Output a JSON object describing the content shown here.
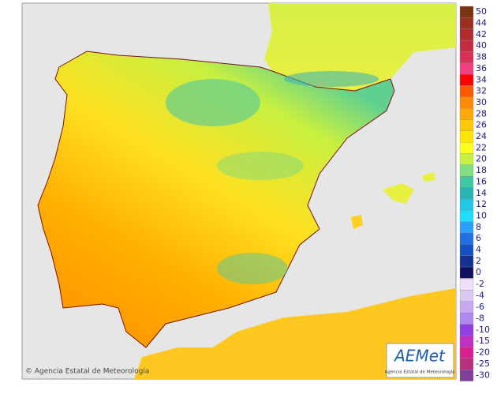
{
  "legend": {
    "entries": [
      {
        "value": 50,
        "color": "#7a3412"
      },
      {
        "value": 44,
        "color": "#9c2f22"
      },
      {
        "value": 42,
        "color": "#b02c30"
      },
      {
        "value": 40,
        "color": "#c42c42"
      },
      {
        "value": 38,
        "color": "#d83058"
      },
      {
        "value": 36,
        "color": "#f04080"
      },
      {
        "value": 34,
        "color": "#ff0000"
      },
      {
        "value": 32,
        "color": "#ff5a00"
      },
      {
        "value": 30,
        "color": "#ff8c00"
      },
      {
        "value": 28,
        "color": "#ffaa00"
      },
      {
        "value": 26,
        "color": "#ffc800"
      },
      {
        "value": 24,
        "color": "#ffe600"
      },
      {
        "value": 22,
        "color": "#ffff20"
      },
      {
        "value": 20,
        "color": "#c8f040"
      },
      {
        "value": 18,
        "color": "#80e080"
      },
      {
        "value": 16,
        "color": "#40c8a0"
      },
      {
        "value": 14,
        "color": "#28b4b4"
      },
      {
        "value": 12,
        "color": "#20c8e8"
      },
      {
        "value": 10,
        "color": "#20dcff"
      },
      {
        "value": 8,
        "color": "#2aa0ff"
      },
      {
        "value": 6,
        "color": "#2070e0"
      },
      {
        "value": 4,
        "color": "#1450c0"
      },
      {
        "value": 2,
        "color": "#143090"
      },
      {
        "value": 0,
        "color": "#101060"
      },
      {
        "value": -2,
        "color": "#ece0fa"
      },
      {
        "value": -4,
        "color": "#dcc8f4"
      },
      {
        "value": -6,
        "color": "#c8a8f0"
      },
      {
        "value": -8,
        "color": "#b088f0"
      },
      {
        "value": -10,
        "color": "#9040e0"
      },
      {
        "value": -15,
        "color": "#c030c0"
      },
      {
        "value": -20,
        "color": "#d82090"
      },
      {
        "value": -25,
        "color": "#b83080"
      },
      {
        "value": -30,
        "color": "#80409a"
      }
    ]
  },
  "credit": "© Agencia Estatal de Meteorología",
  "logo": {
    "text": "AEMet",
    "subtitle": "Agencia Estatal de Meteorología"
  }
}
